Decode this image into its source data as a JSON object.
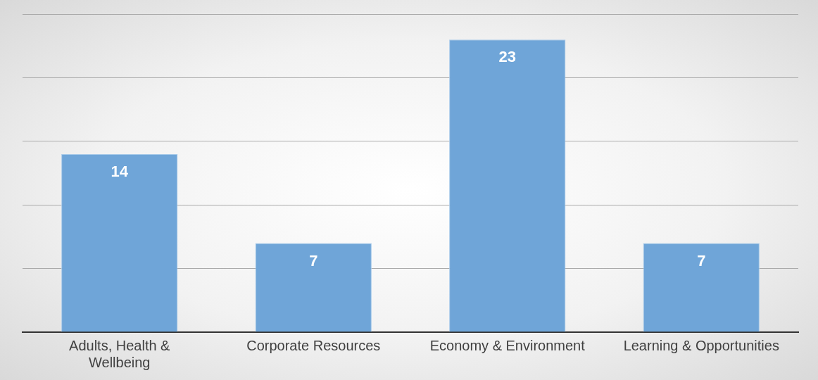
{
  "chart_data": {
    "type": "bar",
    "categories": [
      "Adults, Health & Wellbeing",
      "Corporate Resources",
      "Economy & Environment",
      "Learning & Opportunities"
    ],
    "values": [
      14,
      7,
      23,
      7
    ],
    "color": "#6fa5d8",
    "ylim": [
      0,
      25
    ],
    "yticks": [
      {
        "value": 0,
        "label": null
      },
      {
        "value": 5,
        "label": null
      },
      {
        "value": 10,
        "label": null
      },
      {
        "value": 15,
        "label": null
      },
      {
        "value": 20,
        "label": null
      },
      {
        "value": 25,
        "label": null
      }
    ],
    "grid": "y",
    "tick_labels": "x",
    "data_labels": true,
    "legend": false
  }
}
